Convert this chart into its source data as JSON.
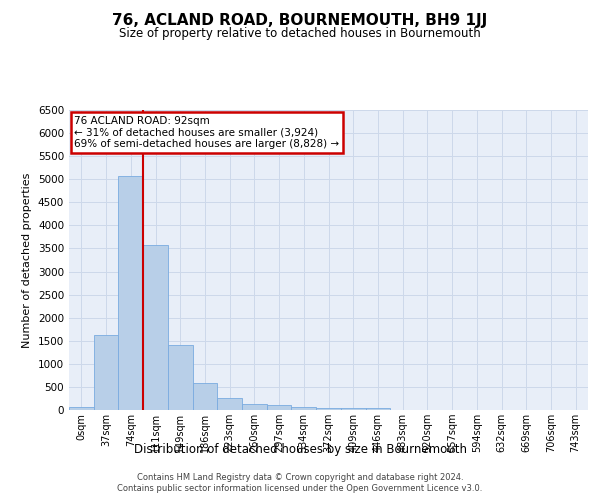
{
  "title": "76, ACLAND ROAD, BOURNEMOUTH, BH9 1JJ",
  "subtitle": "Size of property relative to detached houses in Bournemouth",
  "xlabel": "Distribution of detached houses by size in Bournemouth",
  "ylabel": "Number of detached properties",
  "footer1": "Contains HM Land Registry data © Crown copyright and database right 2024.",
  "footer2": "Contains public sector information licensed under the Open Government Licence v3.0.",
  "bar_color": "#b8cfe8",
  "bar_edge_color": "#7aabe0",
  "annotation_box_color": "#cc0000",
  "vline_color": "#cc0000",
  "annotation_line1": "76 ACLAND ROAD: 92sqm",
  "annotation_line2": "← 31% of detached houses are smaller (3,924)",
  "annotation_line3": "69% of semi-detached houses are larger (8,828) →",
  "categories": [
    "0sqm",
    "37sqm",
    "74sqm",
    "111sqm",
    "149sqm",
    "186sqm",
    "223sqm",
    "260sqm",
    "297sqm",
    "334sqm",
    "372sqm",
    "409sqm",
    "446sqm",
    "483sqm",
    "520sqm",
    "557sqm",
    "594sqm",
    "632sqm",
    "669sqm",
    "706sqm",
    "743sqm"
  ],
  "values": [
    70,
    1625,
    5080,
    3580,
    1400,
    580,
    270,
    140,
    110,
    70,
    50,
    50,
    35,
    0,
    0,
    0,
    0,
    0,
    0,
    0,
    0
  ],
  "ylim": [
    0,
    6500
  ],
  "yticks": [
    0,
    500,
    1000,
    1500,
    2000,
    2500,
    3000,
    3500,
    4000,
    4500,
    5000,
    5500,
    6000,
    6500
  ],
  "vline_x_index": 2.49,
  "grid_color": "#cdd8ea",
  "bg_color": "#e8eef8"
}
